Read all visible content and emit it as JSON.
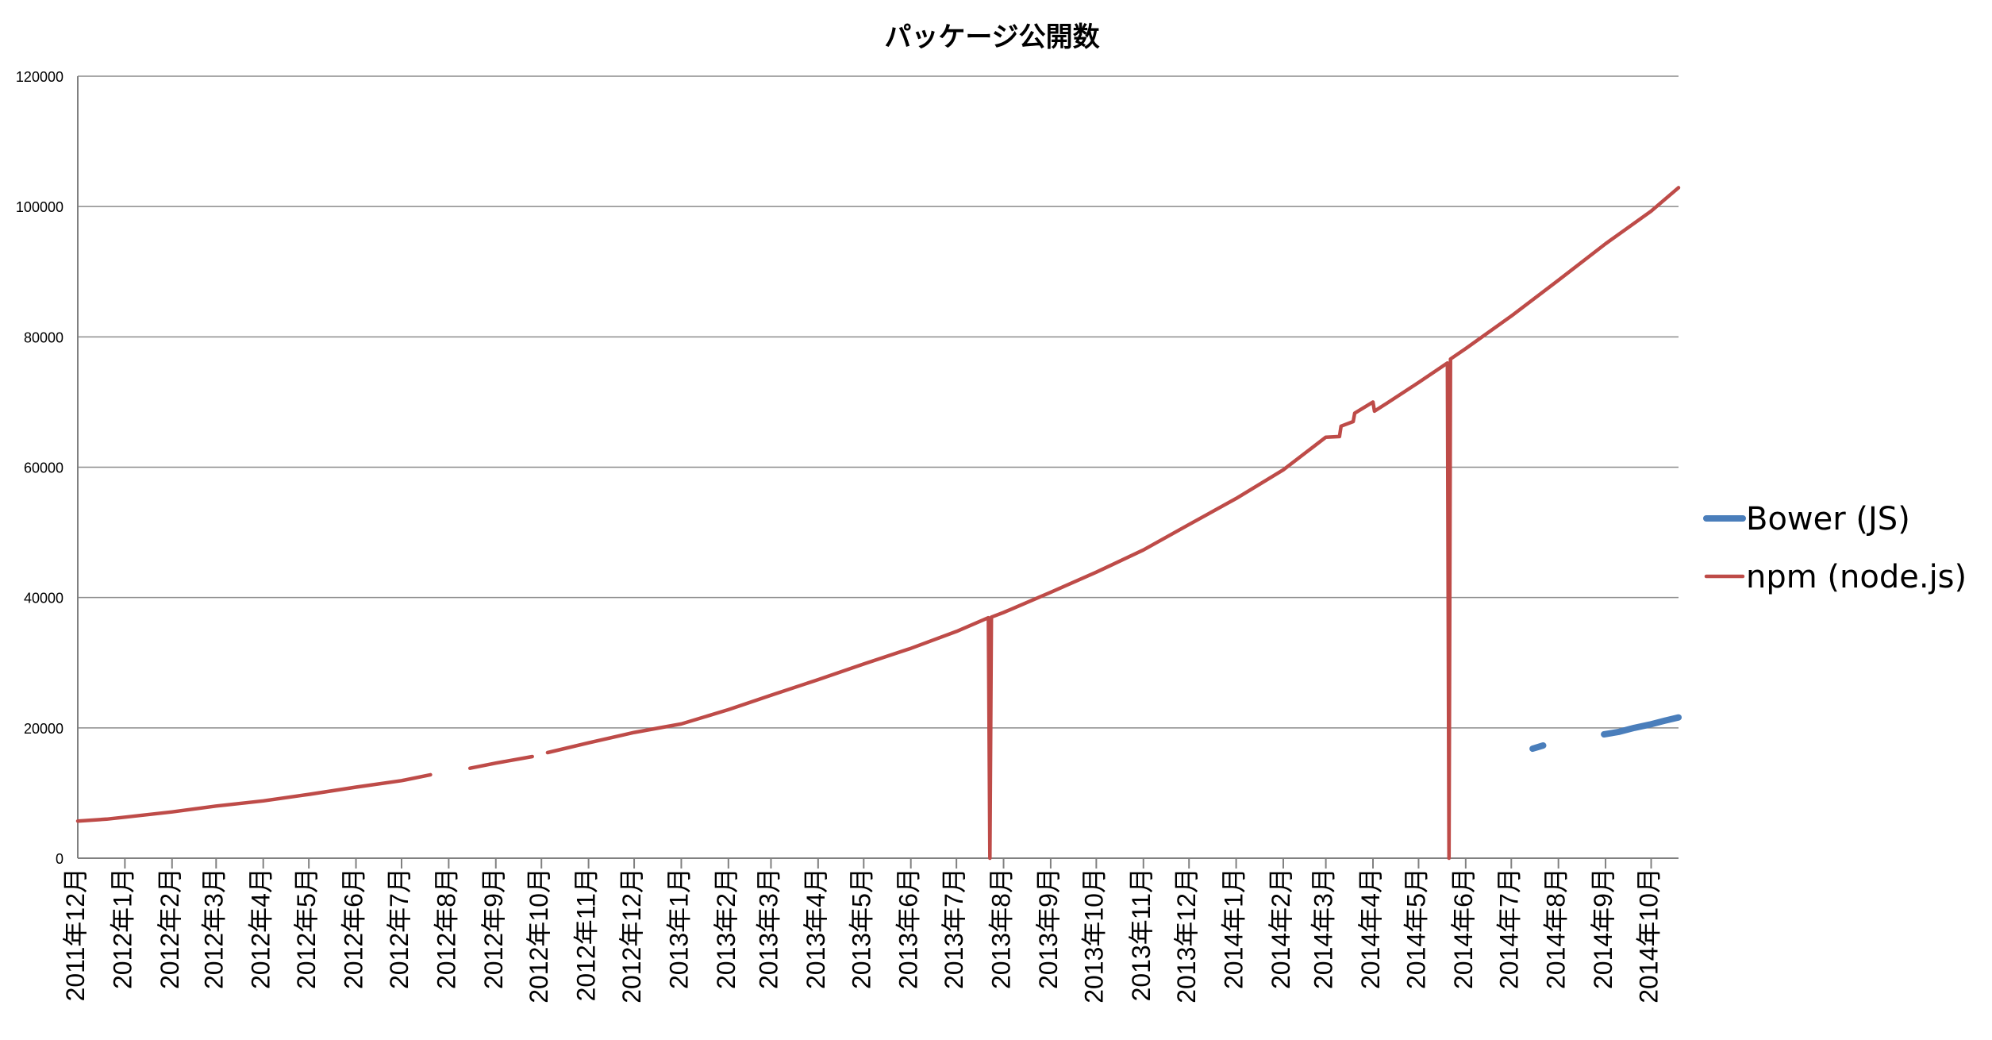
{
  "chart_data": {
    "type": "line",
    "title": "パッケージ公開数",
    "xlabel": "",
    "ylabel": "",
    "ylim": [
      0,
      120000
    ],
    "yticks": [
      0,
      20000,
      40000,
      60000,
      80000,
      100000,
      120000
    ],
    "y_tick_labels": [
      "0",
      "20000",
      "40000",
      "60000",
      "80000",
      "100000",
      "120000"
    ],
    "grid": true,
    "legend_position": "right",
    "x_tick_labels": [
      "2011年12月",
      "2012年1月",
      "2012年2月",
      "2012年3月",
      "2012年4月",
      "2012年5月",
      "2012年6月",
      "2012年7月",
      "2012年8月",
      "2012年9月",
      "2012年10月",
      "2012年11月",
      "2012年12月",
      "2013年1月",
      "2013年2月",
      "2013年3月",
      "2013年4月",
      "2013年5月",
      "2013年6月",
      "2013年7月",
      "2013年8月",
      "2013年9月",
      "2013年10月",
      "2013年11月",
      "2013年12月",
      "2014年1月",
      "2014年2月",
      "2014年3月",
      "2014年4月",
      "2014年5月",
      "2014年6月",
      "2014年7月",
      "2014年8月",
      "2014年9月",
      "2014年10月"
    ],
    "x_range": [
      "2011-12-01",
      "2014-10-19"
    ],
    "series": [
      {
        "name": "Bower (JS)",
        "color": "#4a7ebb",
        "segments": [
          [
            [
              "2014-07-15",
              16800
            ],
            [
              "2014-07-22",
              17300
            ]
          ],
          [
            [
              "2014-08-31",
              19000
            ],
            [
              "2014-09-10",
              19400
            ],
            [
              "2014-09-20",
              20000
            ],
            [
              "2014-09-30",
              20500
            ],
            [
              "2014-10-10",
              21100
            ],
            [
              "2014-10-19",
              21600
            ]
          ]
        ]
      },
      {
        "name": "npm (node.js)",
        "color": "#be4b48",
        "segments": [
          [
            [
              "2011-12-01",
              5700
            ],
            [
              "2011-12-20",
              6000
            ],
            [
              "2012-01-01",
              6300
            ],
            [
              "2012-02-01",
              7100
            ],
            [
              "2012-03-01",
              8000
            ],
            [
              "2012-04-01",
              8800
            ],
            [
              "2012-05-01",
              9800
            ],
            [
              "2012-06-01",
              10900
            ],
            [
              "2012-07-01",
              11900
            ],
            [
              "2012-07-20",
              12800
            ]
          ],
          [
            [
              "2012-08-15",
              13800
            ],
            [
              "2012-09-01",
              14600
            ],
            [
              "2012-09-25",
              15600
            ]
          ],
          [
            [
              "2012-10-05",
              16200
            ],
            [
              "2012-11-01",
              17700
            ],
            [
              "2012-12-01",
              19300
            ],
            [
              "2012-12-20",
              20100
            ],
            [
              "2013-01-01",
              20600
            ],
            [
              "2013-02-01",
              22800
            ],
            [
              "2013-03-01",
              25000
            ],
            [
              "2013-04-01",
              27400
            ],
            [
              "2013-05-01",
              29800
            ],
            [
              "2013-06-01",
              32200
            ],
            [
              "2013-07-01",
              34800
            ],
            [
              "2013-07-22",
              36900
            ],
            [
              "2013-07-23",
              0
            ],
            [
              "2013-07-24",
              37000
            ],
            [
              "2013-08-01",
              37700
            ],
            [
              "2013-09-01",
              40800
            ],
            [
              "2013-10-01",
              43900
            ],
            [
              "2013-11-01",
              47300
            ],
            [
              "2013-12-01",
              51200
            ],
            [
              "2014-01-01",
              55200
            ],
            [
              "2014-02-01",
              59600
            ],
            [
              "2014-03-01",
              64600
            ],
            [
              "2014-03-10",
              64700
            ],
            [
              "2014-03-11",
              66300
            ],
            [
              "2014-03-19",
              67000
            ],
            [
              "2014-03-20",
              68300
            ],
            [
              "2014-04-01",
              70000
            ],
            [
              "2014-04-02",
              68600
            ],
            [
              "2014-04-10",
              69800
            ],
            [
              "2014-05-01",
              73000
            ],
            [
              "2014-05-20",
              76000
            ],
            [
              "2014-05-21",
              0
            ],
            [
              "2014-05-22",
              76600
            ],
            [
              "2014-06-01",
              78200
            ],
            [
              "2014-07-01",
              83200
            ],
            [
              "2014-08-01",
              88700
            ],
            [
              "2014-09-01",
              94300
            ],
            [
              "2014-10-01",
              99300
            ],
            [
              "2014-10-19",
              102900
            ]
          ]
        ]
      }
    ]
  }
}
